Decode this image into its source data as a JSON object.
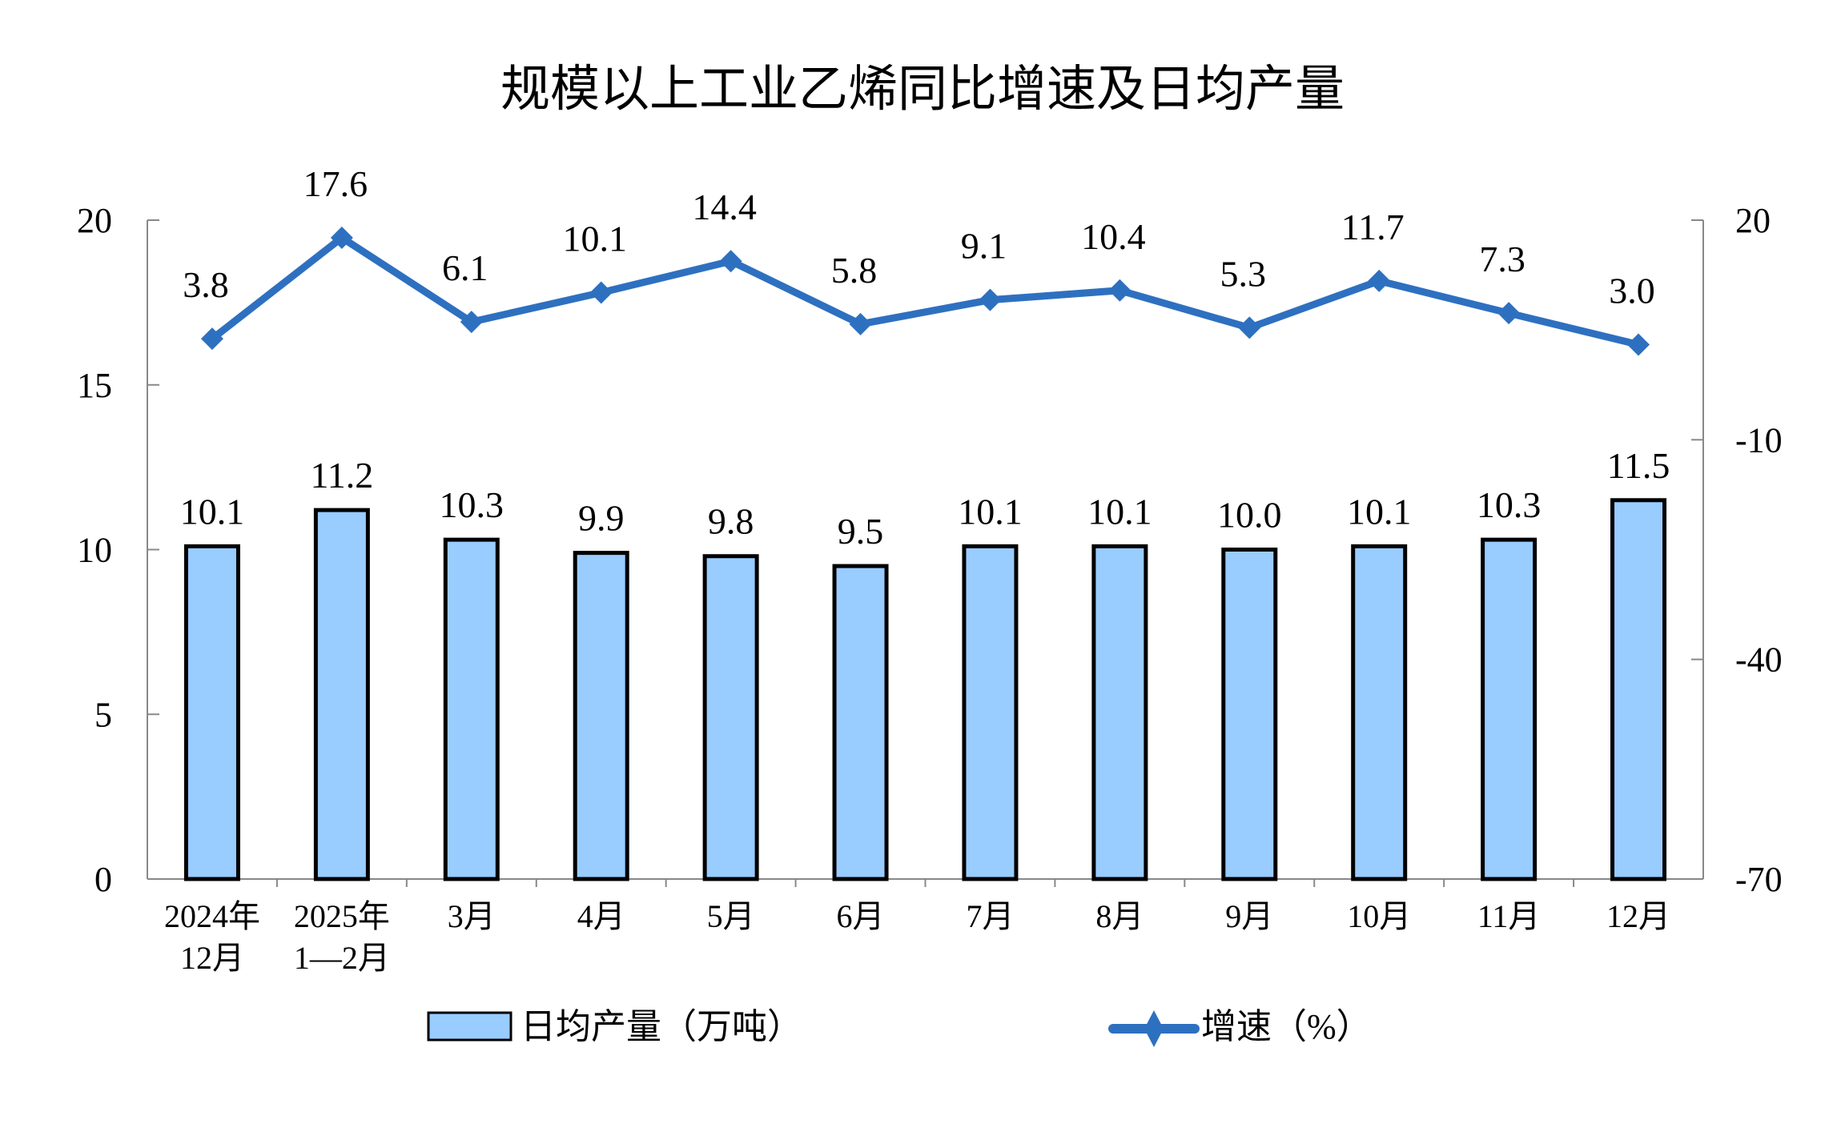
{
  "chart_data": {
    "type": "bar+line",
    "title": "规模以上工业乙烯同比增速及日均产量",
    "categories": [
      [
        "2024年",
        "12月"
      ],
      [
        "2025年",
        "1—2月"
      ],
      [
        "3月"
      ],
      [
        "4月"
      ],
      [
        "5月"
      ],
      [
        "6月"
      ],
      [
        "7月"
      ],
      [
        "8月"
      ],
      [
        "9月"
      ],
      [
        "10月"
      ],
      [
        "11月"
      ],
      [
        "12月"
      ]
    ],
    "series": [
      {
        "name": "日均产量（万吨）",
        "type": "bar",
        "axis": "left",
        "color": "#99CCFF",
        "values": [
          10.1,
          11.2,
          10.3,
          9.9,
          9.8,
          9.5,
          10.1,
          10.1,
          10.0,
          10.1,
          10.3,
          11.5
        ],
        "labels": [
          "10.1",
          "11.2",
          "10.3",
          "9.9",
          "9.8",
          "9.5",
          "10.1",
          "10.1",
          "10.0",
          "10.1",
          "10.3",
          "11.5"
        ]
      },
      {
        "name": "增速（%）",
        "type": "line",
        "axis": "right",
        "color": "#2E70C0",
        "marker": "diamond",
        "values": [
          3.8,
          17.6,
          6.1,
          10.1,
          14.4,
          5.8,
          9.1,
          10.4,
          5.3,
          11.7,
          7.3,
          3.0
        ],
        "labels": [
          "3.8",
          "17.6",
          "6.1",
          "10.1",
          "14.4",
          "5.8",
          "9.1",
          "10.4",
          "5.3",
          "11.7",
          "7.3",
          "3.0"
        ]
      }
    ],
    "left_axis": {
      "ylim": [
        0,
        20
      ],
      "ticks": [
        "0",
        "5",
        "10",
        "15",
        "20"
      ]
    },
    "right_axis": {
      "ylim": [
        -70,
        20
      ],
      "ticks": [
        "-70",
        "-40",
        "-10",
        "20"
      ]
    },
    "grid": false,
    "legend": "bottom"
  }
}
